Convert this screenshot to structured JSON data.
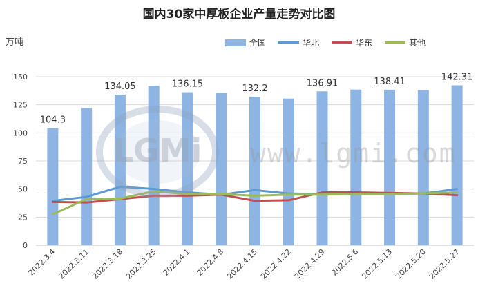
{
  "chart_data": {
    "type": "bar",
    "title": "国内30家中厚板企业产量走势对比图",
    "ylabel": "万吨",
    "ylim": [
      0,
      150
    ],
    "yticks": [
      0,
      25,
      50,
      75,
      100,
      125,
      150
    ],
    "grid": true,
    "legend_position": "top-right",
    "categories": [
      "2022.3.4",
      "2022.3.11",
      "2022.3.18",
      "2022.3.25",
      "2022.4.1",
      "2022.4.8",
      "2022.4.15",
      "2022.4.22",
      "2022.4.29",
      "2022.5.6",
      "2022.5.13",
      "2022.5.20",
      "2022.5.27"
    ],
    "series": [
      {
        "name": "全国",
        "kind": "bar",
        "color": "#8db4e2",
        "values": [
          104.3,
          122,
          134.05,
          142,
          136.15,
          135.5,
          132.2,
          130.5,
          136.91,
          138.5,
          138.41,
          138,
          142.31
        ],
        "data_labels": {
          "0": "104.3",
          "2": "134.05",
          "4": "136.15",
          "6": "132.2",
          "8": "136.91",
          "10": "138.41",
          "12": "142.31"
        }
      },
      {
        "name": "华北",
        "kind": "line",
        "color": "#5b9bd5",
        "values": [
          39.5,
          43,
          52,
          50,
          47,
          45,
          49,
          46,
          45.5,
          46,
          46,
          46,
          50
        ]
      },
      {
        "name": "华东",
        "kind": "line",
        "color": "#c0504d",
        "values": [
          38.5,
          38,
          41,
          44,
          44,
          45,
          39.5,
          40,
          47,
          47,
          46.5,
          46,
          44.5
        ]
      },
      {
        "name": "其他",
        "kind": "line",
        "color": "#9bbb59",
        "values": [
          27.5,
          41,
          41.5,
          48,
          45.5,
          45.5,
          44,
          45,
          45,
          45.5,
          45.5,
          46,
          47
        ]
      }
    ]
  },
  "watermark": {
    "logo_text": "LGMi",
    "url_text": "www.lgmi.com"
  }
}
